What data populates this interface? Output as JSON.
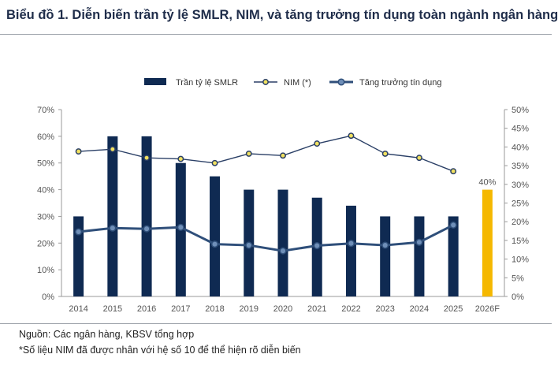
{
  "title": "Biểu đồ 1. Diễn biến trần tỷ lệ SMLR, NIM, và tăng trưởng tín dụng toàn ngành ngân hàng",
  "footer": {
    "source": "Nguồn: Các ngân hàng, KBSV tổng hợp",
    "note": "*Số liệu NIM đã được nhân với hệ số 10 để thể hiện rõ diễn biến"
  },
  "colors": {
    "bar": "#0f2a52",
    "bar_highlight": "#f5b800",
    "nim_line": "#2a3f66",
    "nim_marker": "#f0e060",
    "credit_line": "#2f4f7a",
    "credit_marker": "#6f8fb8",
    "axis_text": "#555555"
  },
  "chart_data": {
    "type": "bar",
    "categories": [
      "2014",
      "2015",
      "2016",
      "2017",
      "2018",
      "2019",
      "2020",
      "2021",
      "2022",
      "2023",
      "2024",
      "2025",
      "2026F"
    ],
    "series": [
      {
        "name": "Trần tỷ lệ SMLR",
        "type": "bar",
        "axis": "left",
        "values": [
          30,
          60,
          60,
          50,
          45,
          40,
          40,
          37,
          34,
          30,
          30,
          30,
          40
        ]
      },
      {
        "name": "NIM (*)",
        "type": "line",
        "axis": "right",
        "values": [
          38.8,
          39.4,
          37.1,
          36.8,
          35.7,
          38.2,
          37.7,
          40.9,
          43.0,
          38.2,
          37.1,
          33.5,
          null
        ]
      },
      {
        "name": "Tăng trưởng tín dụng",
        "type": "line",
        "axis": "right",
        "values": [
          17.3,
          18.3,
          18.1,
          18.5,
          14.0,
          13.7,
          12.2,
          13.6,
          14.2,
          13.7,
          14.5,
          19.1,
          null
        ]
      }
    ],
    "data_labels": [
      {
        "category": "2026F",
        "text": "40%"
      }
    ],
    "y_left": {
      "min": 0,
      "max": 70,
      "ticks": [
        "0%",
        "10%",
        "20%",
        "30%",
        "40%",
        "50%",
        "60%",
        "70%"
      ]
    },
    "y_right": {
      "min": 0,
      "max": 50,
      "ticks": [
        "0%",
        "5%",
        "10%",
        "15%",
        "20%",
        "25%",
        "30%",
        "35%",
        "40%",
        "45%",
        "50%"
      ]
    },
    "legend_position": "top",
    "grid": false
  }
}
